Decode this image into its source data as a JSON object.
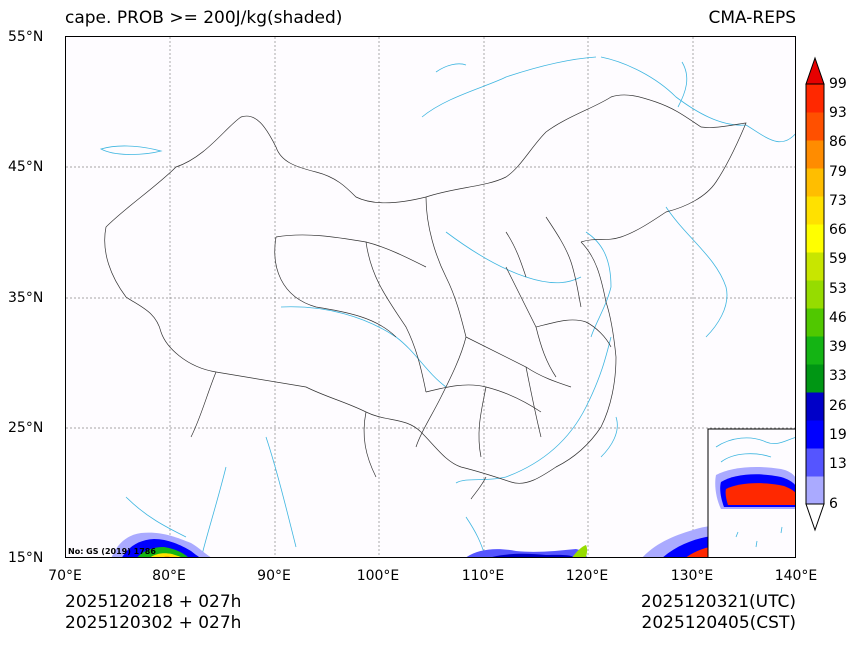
{
  "header": {
    "title_left": "cape. PROB >= 200J/kg(shaded)",
    "title_right": "CMA-REPS"
  },
  "axes": {
    "lat_labels": [
      "55°N",
      "45°N",
      "35°N",
      "25°N",
      "15°N"
    ],
    "lon_labels": [
      "70°E",
      "80°E",
      "90°E",
      "100°E",
      "110°E",
      "120°E",
      "130°E",
      "140°E"
    ]
  },
  "map": {
    "credit": "No: GS (2019) 1786",
    "extent": {
      "lon": [
        70,
        140
      ],
      "lat": [
        15,
        55
      ]
    }
  },
  "colorbar": {
    "levels": [
      "6",
      "13",
      "19",
      "26",
      "33",
      "39",
      "46",
      "53",
      "59",
      "66",
      "73",
      "79",
      "86",
      "93",
      "99"
    ],
    "colors": [
      "#aaaaff",
      "#5555ff",
      "#0000ff",
      "#0000c8",
      "#009614",
      "#14b414",
      "#50c800",
      "#96dc00",
      "#c8e600",
      "#ffff00",
      "#ffe100",
      "#ffbe00",
      "#ff8c00",
      "#ff5000",
      "#ff2800",
      "#e60000"
    ]
  },
  "footer": {
    "init_utc": "2025120218  +  027h",
    "init_cst": "2025120302  +  027h",
    "valid_utc": "2025120321(UTC)",
    "valid_cst": "2025120405(CST)"
  }
}
